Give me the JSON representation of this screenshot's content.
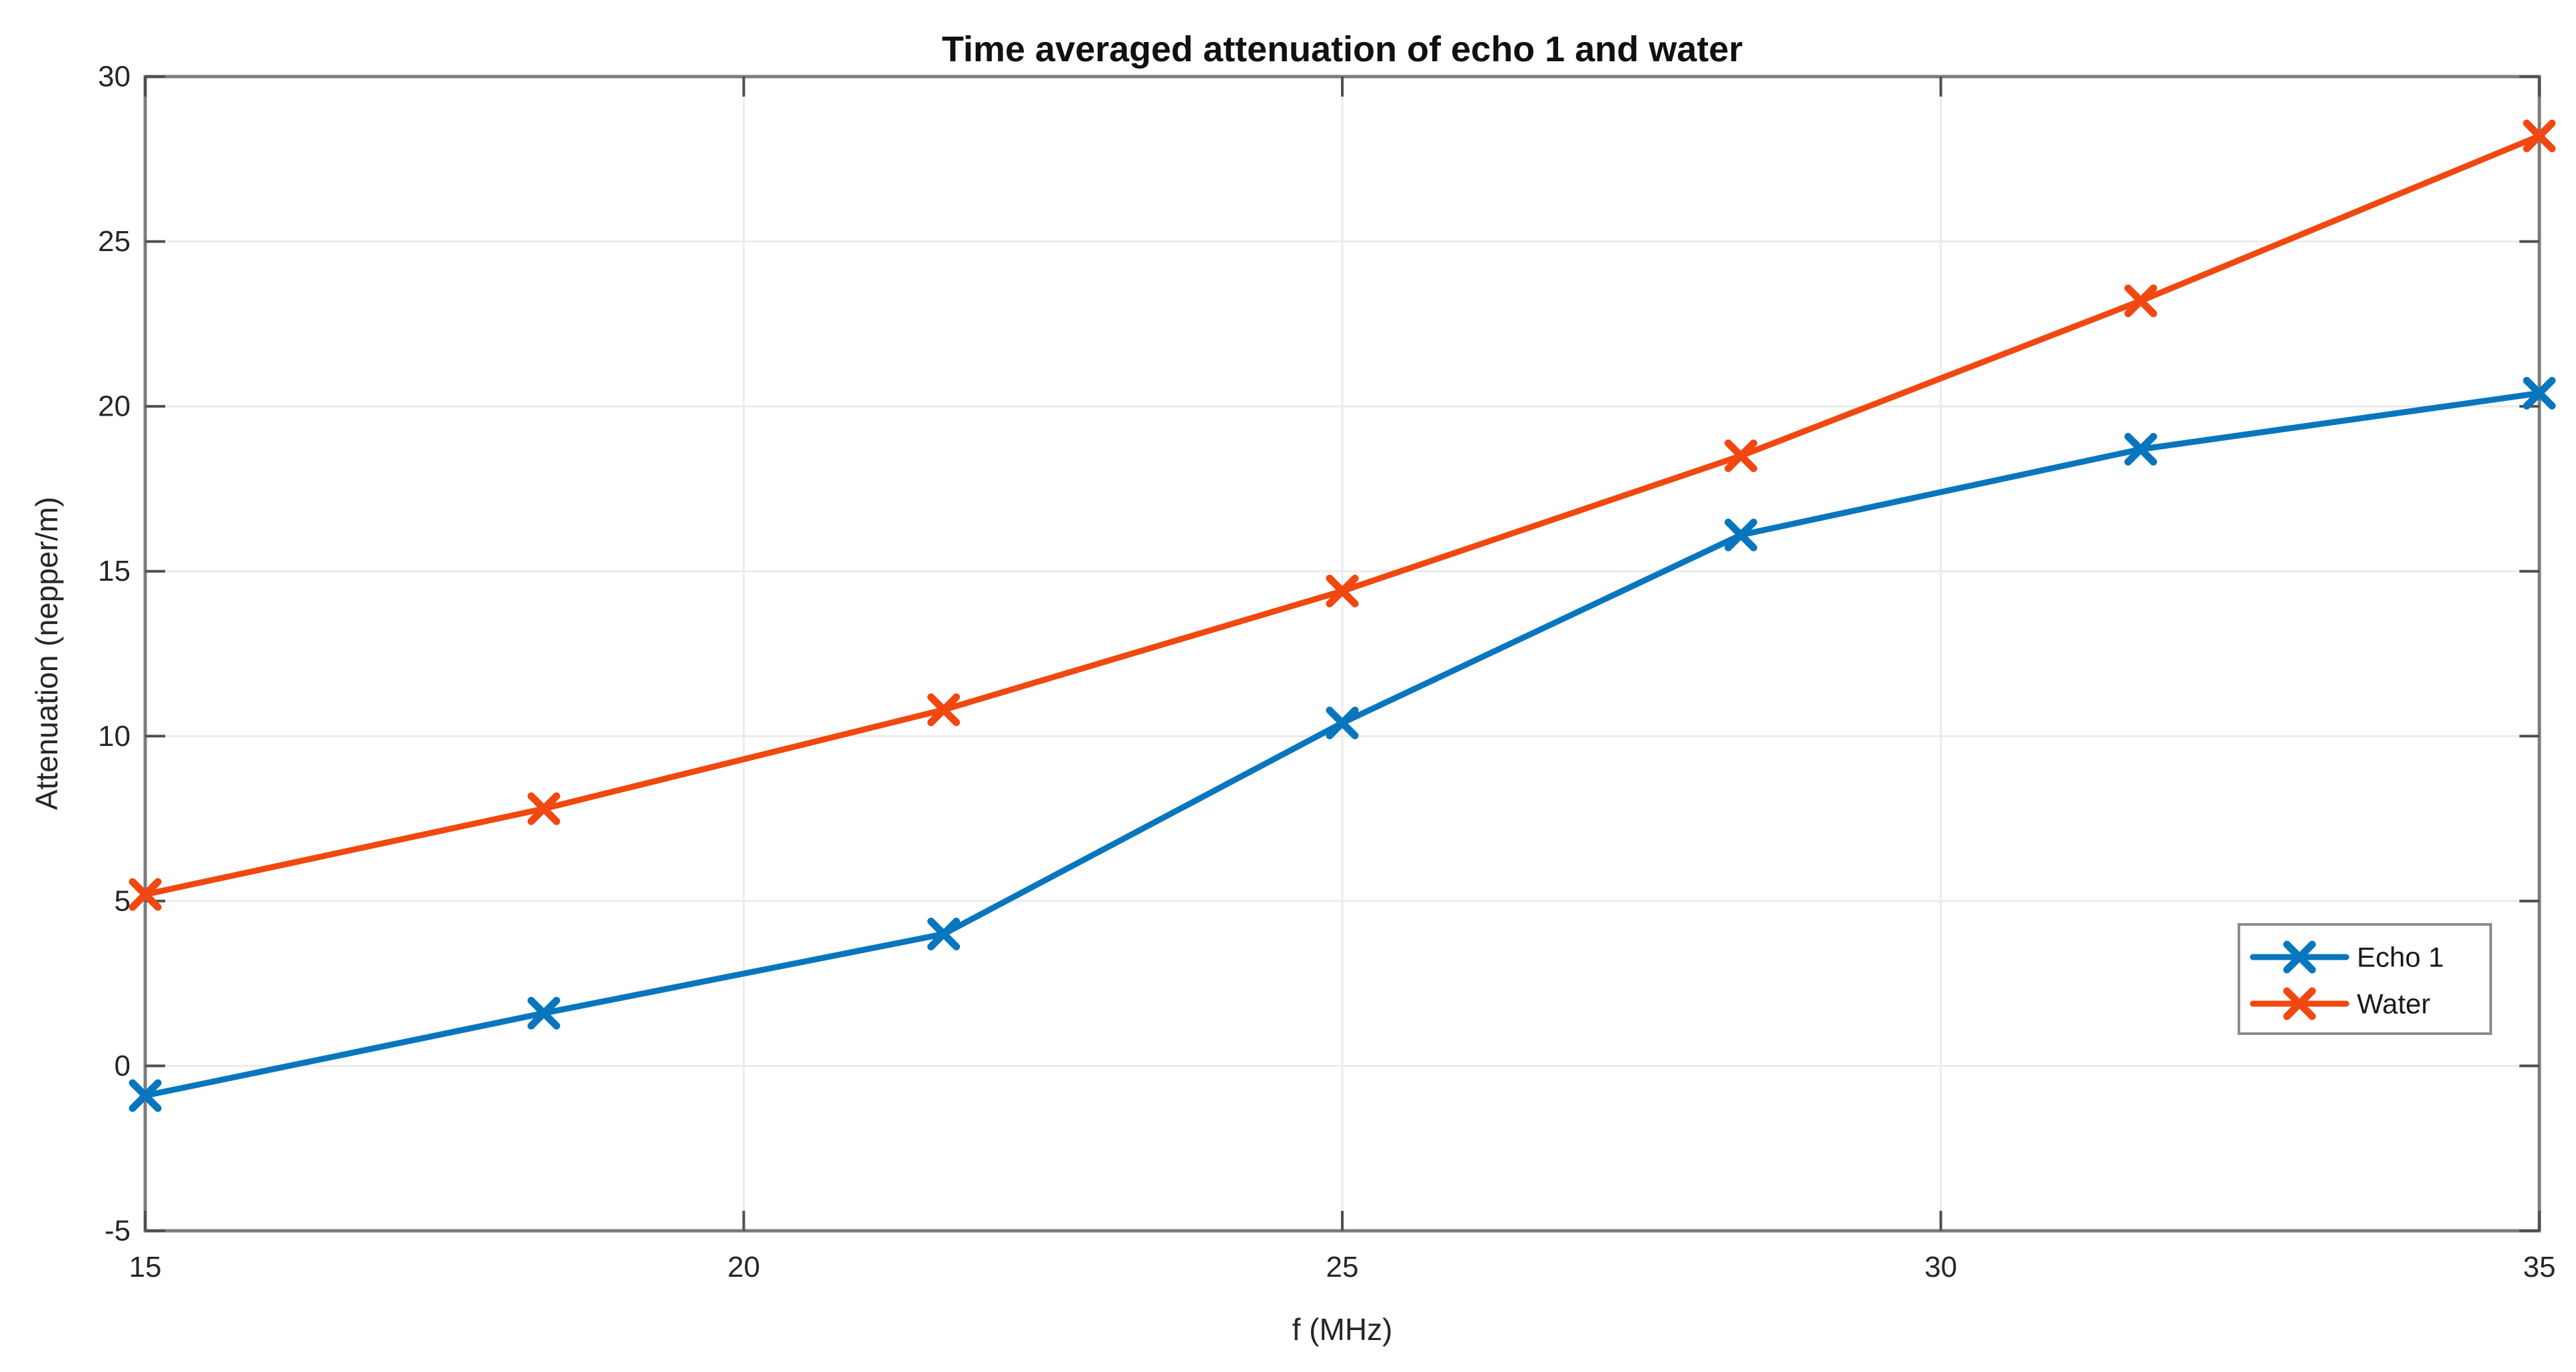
{
  "figure": {
    "title": "Time averaged attenuation of echo 1 and water",
    "xlabel": "f (MHz)",
    "ylabel": "Attenuation (nepper/m)"
  },
  "chart_data": {
    "type": "line",
    "title": "Time averaged attenuation of echo 1 and water",
    "xlabel": "f (MHz)",
    "ylabel": "Attenuation (nepper/m)",
    "xlim": [
      15,
      35
    ],
    "ylim": [
      -5,
      30
    ],
    "x_ticks": [
      15,
      20,
      25,
      30,
      35
    ],
    "y_ticks": [
      -5,
      0,
      5,
      10,
      15,
      20,
      25,
      30
    ],
    "grid": true,
    "x": [
      15,
      18.33,
      21.67,
      25,
      28.33,
      31.67,
      35
    ],
    "series": [
      {
        "name": "Echo 1",
        "color": "#0876BE",
        "marker": "x",
        "values": [
          -0.9,
          1.6,
          4.0,
          10.4,
          16.1,
          18.7,
          20.4
        ]
      },
      {
        "name": "Water",
        "color": "#F04810",
        "marker": "x",
        "values": [
          5.2,
          7.8,
          10.8,
          14.4,
          18.5,
          23.2,
          28.2
        ]
      }
    ],
    "legend": {
      "position": "bottom-right",
      "entries": [
        "Echo 1",
        "Water"
      ]
    },
    "colors": {
      "grid": "#EBEBEB",
      "axis_box": "#7C7C7C",
      "tick": "#4F4F4F",
      "text": "#262626",
      "background": "#FFFFFF"
    }
  }
}
